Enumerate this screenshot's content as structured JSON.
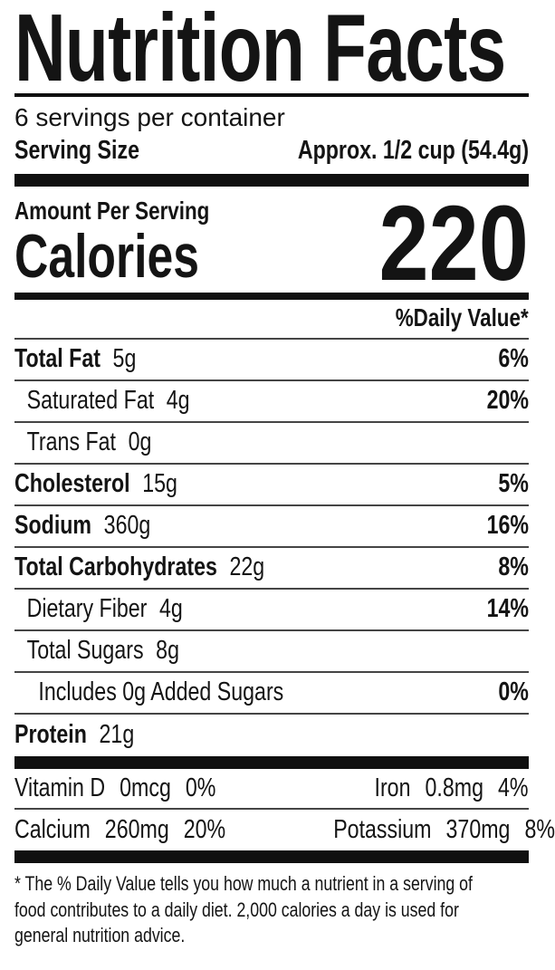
{
  "header": {
    "title": "Nutrition Facts",
    "servings_per_container": "6 servings per container",
    "serving_size": {
      "label": "Serving Size",
      "value": "Approx. 1/2 cup (54.4g)"
    }
  },
  "calories": {
    "section_label": "Amount Per Serving",
    "label": "Calories",
    "value": "220"
  },
  "daily_value_header": "%Daily Value*",
  "nutrients": [
    {
      "name": "Total Fat",
      "amount": "5g",
      "daily_value": "6%"
    },
    {
      "name": "Saturated Fat",
      "amount": "4g",
      "daily_value": "20%"
    },
    {
      "name": "Trans Fat",
      "amount": "0g",
      "daily_value": ""
    },
    {
      "name": "Cholesterol",
      "amount": "15g",
      "daily_value": "5%"
    },
    {
      "name": "Sodium",
      "amount": "360g",
      "daily_value": "16%"
    },
    {
      "name": "Total Carbohydrates",
      "amount": "22g",
      "daily_value": "8%"
    },
    {
      "name": "Dietary Fiber",
      "amount": "4g",
      "daily_value": "14%"
    },
    {
      "name": "Total Sugars",
      "amount": "8g",
      "daily_value": ""
    },
    {
      "name": "Includes 0g Added Sugars",
      "amount": "",
      "daily_value": "0%"
    },
    {
      "name": "Protein",
      "amount": "21g",
      "daily_value": ""
    }
  ],
  "micronutrients": [
    {
      "left": {
        "name": "Vitamin D",
        "amount": "0mcg",
        "daily_value": "0%"
      },
      "right": {
        "name": "Iron",
        "amount": "0.8mg",
        "daily_value": "4%"
      }
    },
    {
      "left": {
        "name": "Calcium",
        "amount": "260mg",
        "daily_value": "20%"
      },
      "right": {
        "name": "Potassium",
        "amount": "370mg",
        "daily_value": "8%"
      }
    }
  ],
  "footnote": {
    "lines": [
      "* The % Daily Value tells you how much a nutrient in a serving of",
      "food contributes to a daily diet. 2,000 calories a day is used for",
      "general nutrition advice."
    ],
    "full_text": "* The % Daily Value tells you how much a nutrient in a serving of food contributes to a daily diet. 2,000 calories a day is used for general nutrition advice."
  },
  "colors": {
    "text": "#141414",
    "separator": "#101010",
    "hairline": "#454545",
    "background": "#ffffff"
  }
}
